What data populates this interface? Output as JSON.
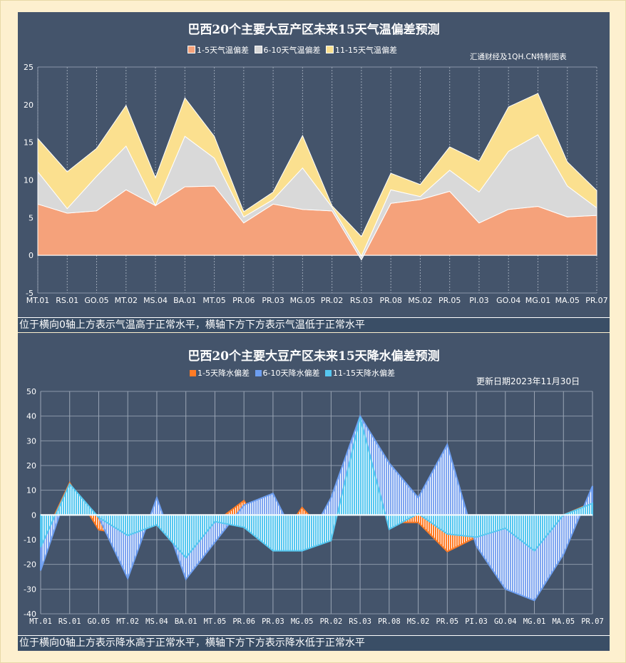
{
  "colors": {
    "bg": "#44546b",
    "s1_temp": "#f5a27b",
    "s2_temp": "#d9d9d9",
    "s3_temp": "#fbe08f",
    "s1_rain": "#ff7b25",
    "s2_rain": "#6d9ef0",
    "s3_rain": "#56c7f0"
  },
  "chart_data": [
    {
      "type": "area",
      "stacked": true,
      "title": "巴西20个主要大豆产区未来15天气温偏差预测",
      "note": "汇通财经及1QH.CN特制图表",
      "caption": "位于横向0轴上方表示气温高于正常水平，横轴下方下方表示气温低于正常水平",
      "categories": [
        "MT.01",
        "RS.01",
        "GO.05",
        "MT.02",
        "MS.04",
        "BA.01",
        "MT.05",
        "PR.06",
        "PR.03",
        "MG.05",
        "PR.02",
        "RS.03",
        "PR.08",
        "MS.02",
        "PR.05",
        "PI.03",
        "GO.04",
        "MG.01",
        "MA.05",
        "PR.07"
      ],
      "ylim": [
        -5,
        25
      ],
      "yticks": [
        -5,
        0,
        5,
        10,
        15,
        20,
        25
      ],
      "grid": "vertical dotted",
      "legend": "top",
      "series": [
        {
          "name": "1-5天气温偏差",
          "values": [
            6.8,
            5.6,
            5.9,
            8.7,
            6.6,
            9.1,
            9.2,
            4.3,
            6.8,
            6.1,
            5.9,
            -0.6,
            6.9,
            7.4,
            8.5,
            4.3,
            6.1,
            6.5,
            5.1,
            5.3
          ]
        },
        {
          "name": "6-10天气温偏差",
          "values": [
            4.3,
            0.6,
            4.6,
            5.8,
            0,
            6.7,
            3.7,
            0.8,
            0.6,
            5.5,
            0.5,
            0.5,
            1.8,
            0.4,
            2.8,
            4.1,
            7.7,
            9.5,
            4.1,
            1.0
          ]
        },
        {
          "name": "11-15天气温偏差",
          "values": [
            4.4,
            4.9,
            3.7,
            5.4,
            3.7,
            5.1,
            2.9,
            0.7,
            1.0,
            4.3,
            0.2,
            2.6,
            2.2,
            1.6,
            3.1,
            4.1,
            5.9,
            5.5,
            3.2,
            2.3
          ]
        }
      ]
    },
    {
      "type": "area",
      "stacked": false,
      "title": "巴西20个主要大豆产区未来15天降水偏差预测",
      "note": "更新日期2023年11月30日",
      "caption": "位于横向0轴上方表示降水高于正常水平，横轴下方下方表示降水低于正常水平",
      "categories": [
        "MT.01",
        "RS.01",
        "GO.05",
        "MT.02",
        "MS.04",
        "BA.01",
        "MT.05",
        "PR.06",
        "PR.03",
        "MG.05",
        "PR.02",
        "RS.03",
        "PR.08",
        "MS.02",
        "PR.05",
        "PI.03",
        "GO.04",
        "MG.01",
        "MA.05",
        "PR.07"
      ],
      "ylim": [
        -40,
        50
      ],
      "yticks": [
        -40,
        -30,
        -20,
        -10,
        0,
        10,
        20,
        30,
        40,
        50
      ],
      "grid": "both",
      "legend": "top",
      "series": [
        {
          "name": "1-5天降水偏差",
          "values": [
            -12,
            13,
            -6,
            -8,
            -4,
            -12,
            -3,
            5.8,
            -14,
            3,
            -10,
            39,
            -3,
            -3,
            -14.8,
            -9,
            -5,
            -14.5,
            0,
            5
          ]
        },
        {
          "name": "6-10天降水偏差",
          "values": [
            -22.5,
            12,
            -1,
            -25.7,
            7,
            -26,
            -11,
            4,
            8.7,
            -14.5,
            7,
            40,
            21,
            7,
            28.5,
            -12.5,
            -30,
            -34.6,
            -16,
            11.7
          ]
        },
        {
          "name": "11-15天降水偏差",
          "values": [
            -13,
            12.5,
            -1,
            -8.3,
            -4,
            -17.3,
            -2.7,
            -5,
            -14.5,
            -14.5,
            -10.4,
            39.5,
            -5.8,
            0.5,
            -7.7,
            -9,
            -5.4,
            -14.5,
            0,
            4.7
          ]
        }
      ]
    }
  ]
}
